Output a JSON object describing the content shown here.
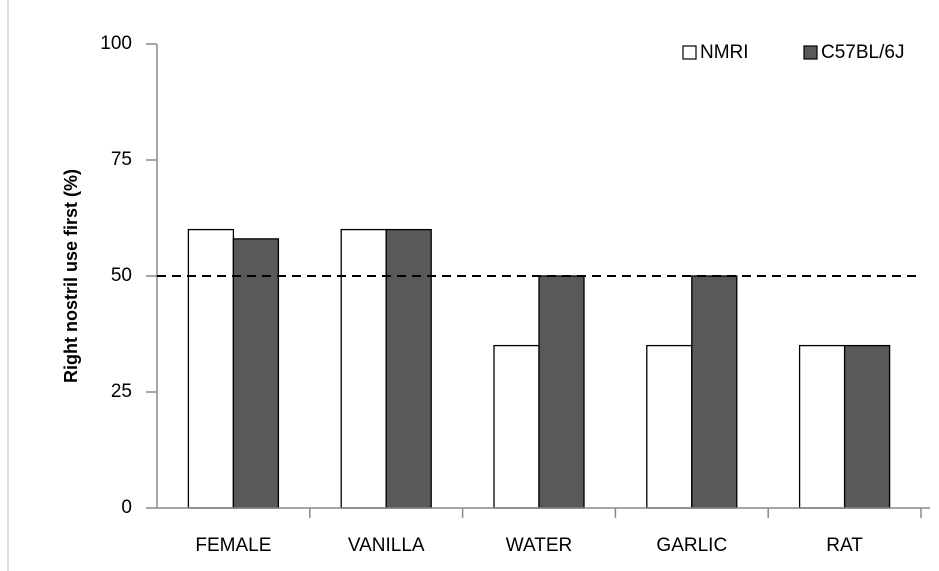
{
  "chart_data": {
    "type": "bar",
    "y_axis_label": "Right nostril use first (%)",
    "categories": [
      "FEMALE",
      "VANILLA",
      "WATER",
      "GARLIC",
      "RAT"
    ],
    "series": [
      {
        "name": "NMRI",
        "color": "#ffffff",
        "values": [
          60,
          60,
          35,
          35,
          35
        ]
      },
      {
        "name": "C57BL/6J",
        "color": "#595959",
        "values": [
          58,
          60,
          50,
          50,
          35
        ]
      }
    ],
    "reference_line": 50,
    "ylim": [
      0,
      100
    ],
    "yticks": [
      0,
      25,
      50,
      75,
      100
    ],
    "legend": "top-right"
  }
}
